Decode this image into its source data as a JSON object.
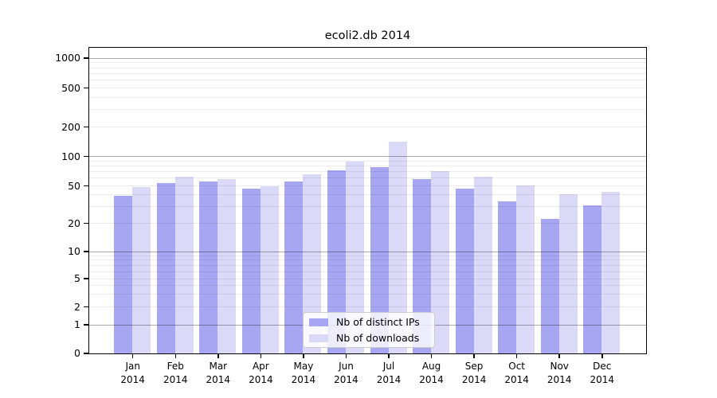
{
  "figure": {
    "background": "#ffffff"
  },
  "chart_data": {
    "type": "bar",
    "title": "ecoli2.db 2014",
    "categories": [
      "Jan 2014",
      "Feb 2014",
      "Mar 2014",
      "Apr 2014",
      "May 2014",
      "Jun 2014",
      "Jul 2014",
      "Aug 2014",
      "Sep 2014",
      "Oct 2014",
      "Nov 2014",
      "Dec 2014"
    ],
    "x_tick_line1": [
      "Jan",
      "Feb",
      "Mar",
      "Apr",
      "May",
      "Jun",
      "Jul",
      "Aug",
      "Sep",
      "Oct",
      "Nov",
      "Dec"
    ],
    "x_tick_line2": "2014",
    "series": [
      {
        "name": "Nb of distinct IPs",
        "color": "#a6a6f2",
        "values": [
          39,
          53,
          55,
          46,
          55,
          71,
          77,
          58,
          46,
          34,
          22,
          31
        ]
      },
      {
        "name": "Nb of downloads",
        "color": "#dadaf8",
        "values": [
          48,
          62,
          58,
          49,
          65,
          88,
          140,
          70,
          61,
          50,
          40,
          43
        ]
      }
    ],
    "xlabel": "",
    "ylabel": "",
    "yscale": "symlog",
    "ylim": [
      0,
      1000
    ],
    "yticks": [
      0,
      1,
      2,
      5,
      10,
      20,
      50,
      100,
      200,
      500,
      1000
    ],
    "grid": "horizontal major and minor gridlines drawn over bars",
    "legend": {
      "position": "bottom-center inside plot",
      "items": [
        "Nb of distinct IPs",
        "Nb of downloads"
      ]
    },
    "colors": {
      "major_grid": "#ababab",
      "minor_grid": "#ededed",
      "spine": "#000000",
      "text": "#000000"
    }
  }
}
